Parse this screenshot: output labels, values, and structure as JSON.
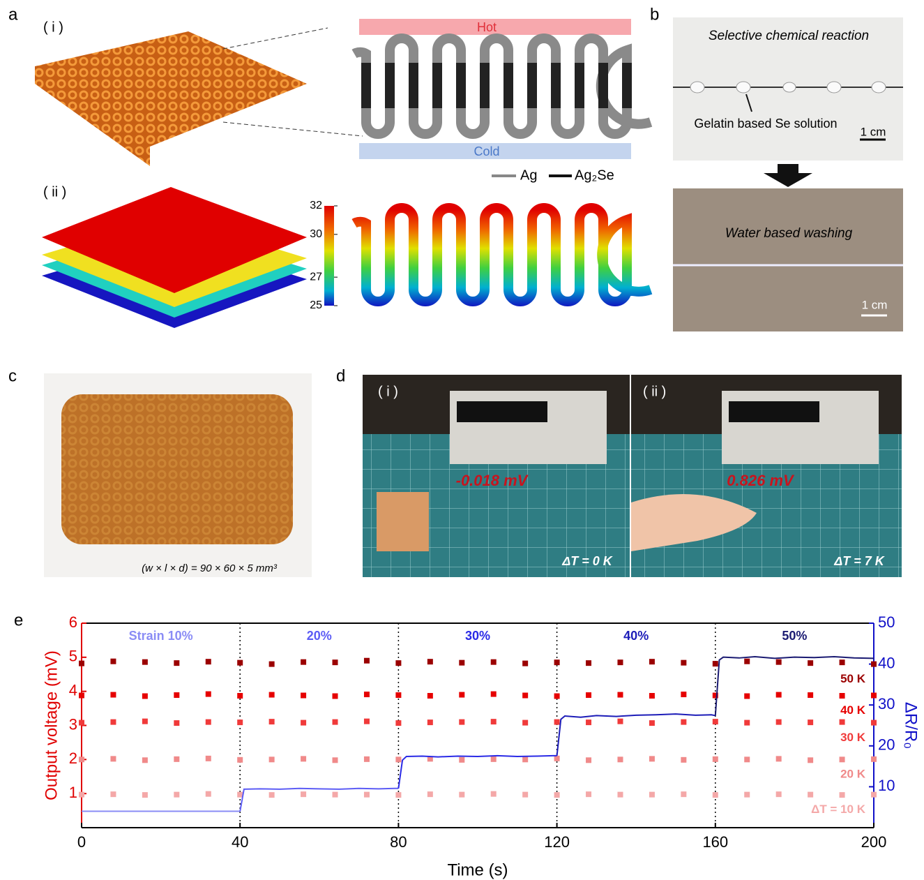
{
  "panel_a": {
    "letter": "a",
    "label_i": "( i )",
    "hot": "Hot",
    "cold": "Cold",
    "legend_ag": "Ag",
    "legend_ag2se": "Ag₂Se",
    "label_ii": "( ii )",
    "colorbar_range": [
      25,
      32
    ],
    "colorbar_ticks": [
      32,
      30,
      27,
      25
    ]
  },
  "panel_b": {
    "letter": "b",
    "top_caption": "Selective chemical reaction",
    "arrow_note": "Gelatin based Se solution",
    "scale_top": "1 cm",
    "bottom_caption": "Water based washing",
    "scale_bottom": "1 cm"
  },
  "panel_c": {
    "letter": "c",
    "caption": "(w × l × d) = 90 × 60 × 5 mm³"
  },
  "panel_d": {
    "letter": "d",
    "label_i": "( i )",
    "voltage_i": "-0.018 mV",
    "dt_i": "ΔT = 0 K",
    "label_ii": "( ii )",
    "voltage_ii": "0.826 mV",
    "dt_ii": "ΔT = 7 K"
  },
  "panel_e": {
    "letter": "e"
  },
  "chart_data": {
    "type": "scatter",
    "xlabel": "Time (s)",
    "ylabel": "Output voltage (mV)",
    "y2label": "ΔR/R₀",
    "xlim": [
      0,
      200
    ],
    "xticks": [
      0,
      40,
      80,
      120,
      160,
      200
    ],
    "ylim": [
      0,
      6
    ],
    "yticks": [
      1,
      2,
      3,
      4,
      5,
      6
    ],
    "y2lim": [
      0,
      50
    ],
    "y2ticks": [
      10,
      20,
      30,
      40,
      50
    ],
    "vlines": [
      40,
      80,
      120,
      160
    ],
    "x": [
      0,
      8,
      16,
      24,
      32,
      40,
      48,
      56,
      64,
      72,
      80,
      88,
      96,
      104,
      112,
      120,
      128,
      136,
      144,
      152,
      160,
      168,
      176,
      184,
      192,
      200
    ],
    "series": [
      {
        "name": "50 K",
        "color": "#9b0000",
        "values": [
          4.82,
          4.88,
          4.86,
          4.83,
          4.87,
          4.84,
          4.8,
          4.86,
          4.85,
          4.9,
          4.83,
          4.87,
          4.84,
          4.86,
          4.82,
          4.85,
          4.83,
          4.85,
          4.87,
          4.84,
          4.81,
          4.88,
          4.86,
          4.83,
          4.85,
          4.8
        ]
      },
      {
        "name": "40 K",
        "color": "#e60000",
        "values": [
          3.88,
          3.9,
          3.86,
          3.89,
          3.92,
          3.87,
          3.9,
          3.88,
          3.86,
          3.91,
          3.89,
          3.87,
          3.9,
          3.92,
          3.88,
          3.86,
          3.89,
          3.9,
          3.87,
          3.91,
          3.88,
          3.86,
          3.9,
          3.89,
          3.87,
          3.88
        ]
      },
      {
        "name": "30 K",
        "color": "#f03a3a",
        "values": [
          3.08,
          3.1,
          3.12,
          3.07,
          3.1,
          3.09,
          3.11,
          3.08,
          3.1,
          3.12,
          3.07,
          3.09,
          3.1,
          3.11,
          3.08,
          3.1,
          3.09,
          3.12,
          3.07,
          3.1,
          3.11,
          3.08,
          3.1,
          3.09,
          3.1,
          3.08
        ]
      },
      {
        "name": "20 K",
        "color": "#f08a8a",
        "values": [
          2.0,
          2.02,
          1.98,
          2.01,
          2.03,
          1.99,
          2.0,
          2.02,
          1.98,
          2.01,
          2.0,
          2.02,
          1.99,
          2.01,
          2.0,
          2.03,
          1.98,
          2.0,
          2.02,
          1.99,
          2.01,
          2.0,
          2.02,
          1.98,
          2.0,
          2.01
        ]
      },
      {
        "name": "ΔT = 10 K",
        "color": "#f4a8a8",
        "values": [
          0.97,
          0.98,
          0.96,
          0.97,
          0.99,
          0.97,
          0.96,
          0.98,
          0.97,
          0.97,
          0.96,
          0.98,
          0.97,
          0.99,
          0.97,
          0.96,
          0.98,
          0.97,
          0.97,
          0.98,
          0.96,
          0.97,
          0.98,
          0.97,
          0.96,
          0.97
        ]
      },
      {
        "name": "Strain 10%",
        "color": "#8a8cf5",
        "axis": "y2",
        "style": "line",
        "x": [
          0,
          10,
          20,
          30,
          40
        ],
        "values": [
          4.0,
          4.0,
          4.0,
          4.0,
          4.0
        ]
      },
      {
        "name": "20%",
        "color": "#5c5cf5",
        "axis": "y2",
        "style": "line",
        "x": [
          40,
          41,
          45,
          50,
          55,
          60,
          65,
          70,
          75,
          79,
          80
        ],
        "values": [
          4.0,
          9.4,
          9.5,
          9.4,
          9.6,
          9.5,
          9.4,
          9.6,
          9.5,
          9.6,
          9.6
        ]
      },
      {
        "name": "30%",
        "color": "#2a2ae6",
        "axis": "y2",
        "style": "line",
        "x": [
          80,
          81,
          82,
          86,
          90,
          95,
          100,
          105,
          110,
          115,
          119,
          120
        ],
        "values": [
          9.6,
          16.5,
          17.4,
          17.5,
          17.3,
          17.5,
          17.4,
          17.6,
          17.4,
          17.5,
          17.6,
          17.6
        ]
      },
      {
        "name": "40%",
        "color": "#1c1cb8",
        "axis": "y2",
        "style": "line",
        "x": [
          120,
          121,
          122,
          126,
          130,
          135,
          140,
          145,
          150,
          155,
          159,
          160
        ],
        "values": [
          17.6,
          26.5,
          27.3,
          27.0,
          27.4,
          27.2,
          27.5,
          27.6,
          27.8,
          27.5,
          27.6,
          27.4
        ]
      },
      {
        "name": "50%",
        "color": "#1a1a72",
        "axis": "y2",
        "style": "line",
        "x": [
          160,
          161,
          162,
          166,
          170,
          175,
          180,
          185,
          190,
          195,
          200
        ],
        "values": [
          27.4,
          41.0,
          41.7,
          41.5,
          41.8,
          41.4,
          41.7,
          41.6,
          41.8,
          41.5,
          41.4
        ]
      }
    ]
  }
}
